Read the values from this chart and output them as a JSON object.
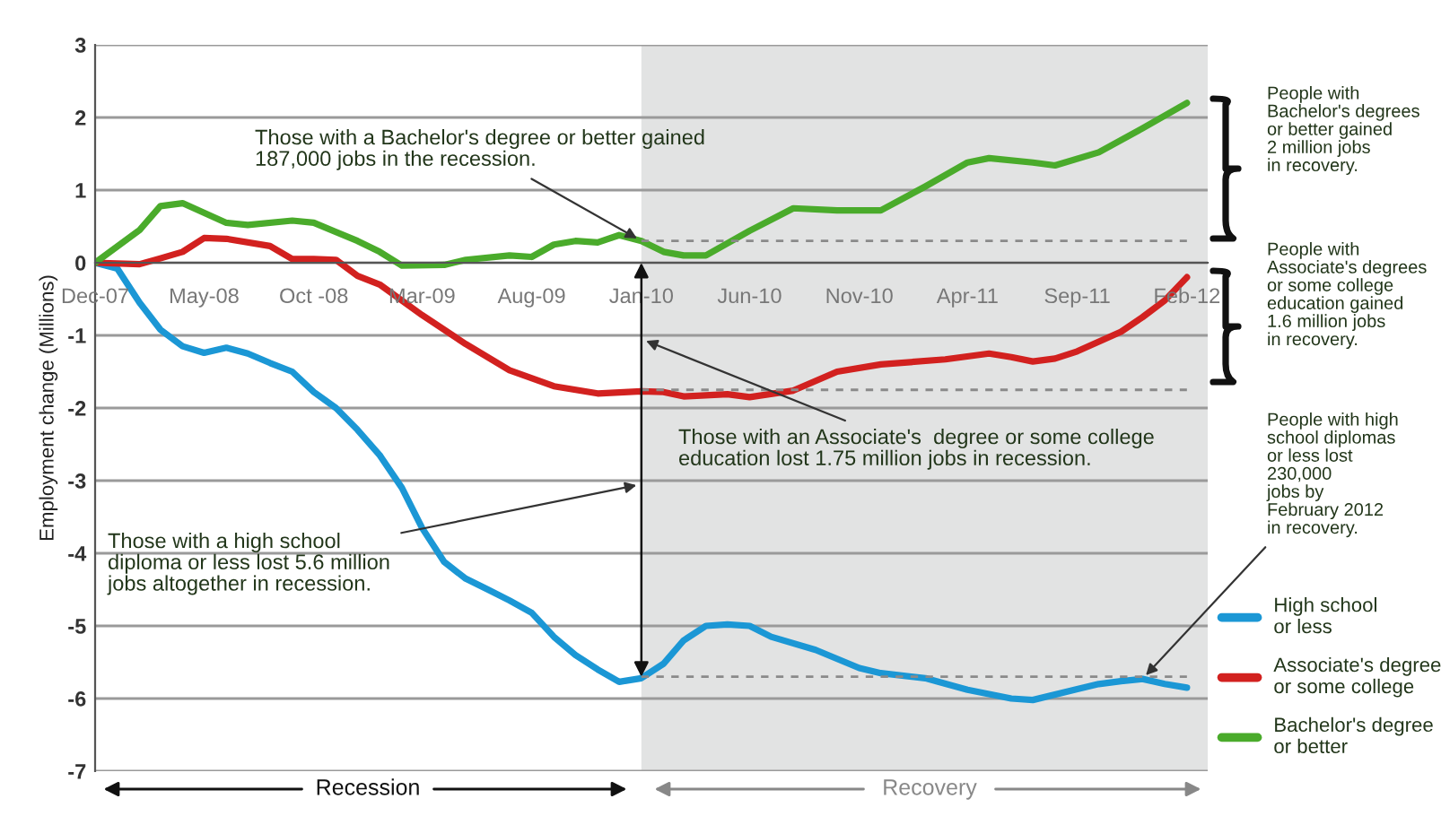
{
  "chart_data": {
    "type": "line",
    "ylabel": "Employment change (Millions)",
    "xlim": [
      "2007-12",
      "2012-03"
    ],
    "ylim": [
      -7,
      3
    ],
    "xticks": [
      {
        "value": "2007-12",
        "label": "Dec-07"
      },
      {
        "value": "2008-05",
        "label": "May-08"
      },
      {
        "value": "2008-10",
        "label": "Oct -08"
      },
      {
        "value": "2009-03",
        "label": "Mar-09"
      },
      {
        "value": "2009-08",
        "label": "Aug-09"
      },
      {
        "value": "2010-01",
        "label": "Jan-10"
      },
      {
        "value": "2010-06",
        "label": "Jun-10"
      },
      {
        "value": "2010-11",
        "label": "Nov-10"
      },
      {
        "value": "2011-04",
        "label": "Apr-11"
      },
      {
        "value": "2011-09",
        "label": "Sep-11"
      },
      {
        "value": "2012-02",
        "label": "Feb-12"
      }
    ],
    "yticks": [
      -7,
      -6,
      -5,
      -4,
      -3,
      -2,
      -1,
      0,
      1,
      2,
      3
    ],
    "grid": "y",
    "legend": "right",
    "bands": [
      {
        "axis": "x",
        "from": "2010-01",
        "to": "2012-03",
        "color": "#e2e3e3"
      }
    ],
    "series": [
      {
        "name": "High school or less",
        "color": "#1b97d5",
        "x": [
          "2007-12",
          "2008-01",
          "2008-02",
          "2008-03",
          "2008-04",
          "2008-05",
          "2008-06",
          "2008-07",
          "2008-08",
          "2008-09",
          "2008-10",
          "2008-11",
          "2008-12",
          "2009-01",
          "2009-02",
          "2009-03",
          "2009-04",
          "2009-05",
          "2009-06",
          "2009-07",
          "2009-08",
          "2009-09",
          "2009-10",
          "2009-11",
          "2009-12",
          "2010-01",
          "2010-02",
          "2010-03",
          "2010-04",
          "2010-05",
          "2010-06",
          "2010-07",
          "2010-09",
          "2010-11",
          "2010-12",
          "2011-02",
          "2011-04",
          "2011-06",
          "2011-07",
          "2011-09",
          "2011-10",
          "2011-11",
          "2011-12",
          "2012-01",
          "2012-02"
        ],
        "values": [
          0,
          -0.08,
          -0.55,
          -0.92,
          -1.15,
          -1.24,
          -1.17,
          -1.25,
          -1.38,
          -1.5,
          -1.78,
          -2.0,
          -2.3,
          -2.65,
          -3.1,
          -3.65,
          -4.12,
          -4.35,
          -4.5,
          -4.65,
          -4.82,
          -5.15,
          -5.4,
          -5.6,
          -5.77,
          -5.72,
          -5.52,
          -5.2,
          -5.0,
          -4.98,
          -5.0,
          -5.15,
          -5.33,
          -5.58,
          -5.65,
          -5.72,
          -5.88,
          -6.0,
          -6.02,
          -5.87,
          -5.8,
          -5.76,
          -5.73,
          -5.8,
          -5.85
        ]
      },
      {
        "name": "Associate's degree or some college",
        "color": "#d2211f",
        "x": [
          "2007-12",
          "2008-02",
          "2008-03",
          "2008-04",
          "2008-05",
          "2008-06",
          "2008-08",
          "2008-09",
          "2008-10",
          "2008-11",
          "2008-12",
          "2009-01",
          "2009-03",
          "2009-05",
          "2009-07",
          "2009-09",
          "2009-11",
          "2010-01",
          "2010-02",
          "2010-03",
          "2010-05",
          "2010-06",
          "2010-08",
          "2010-10",
          "2010-12",
          "2011-03",
          "2011-05",
          "2011-06",
          "2011-07",
          "2011-08",
          "2011-09",
          "2011-11",
          "2011-12",
          "2012-01",
          "2012-02"
        ],
        "values": [
          0,
          -0.02,
          0.06,
          0.15,
          0.34,
          0.33,
          0.23,
          0.05,
          0.05,
          0.04,
          -0.18,
          -0.3,
          -0.72,
          -1.12,
          -1.48,
          -1.7,
          -1.8,
          -1.77,
          -1.78,
          -1.84,
          -1.81,
          -1.85,
          -1.76,
          -1.5,
          -1.4,
          -1.33,
          -1.25,
          -1.3,
          -1.36,
          -1.32,
          -1.22,
          -0.95,
          -0.75,
          -0.52,
          -0.2
        ]
      },
      {
        "name": "Bachelor's degree or better",
        "color": "#4aab2b",
        "x": [
          "2007-12",
          "2008-02",
          "2008-03",
          "2008-04",
          "2008-06",
          "2008-07",
          "2008-09",
          "2008-10",
          "2008-12",
          "2009-01",
          "2009-02",
          "2009-04",
          "2009-05",
          "2009-07",
          "2009-08",
          "2009-09",
          "2009-10",
          "2009-11",
          "2009-12",
          "2010-01",
          "2010-02",
          "2010-03",
          "2010-04",
          "2010-06",
          "2010-08",
          "2010-10",
          "2010-12",
          "2011-02",
          "2011-04",
          "2011-05",
          "2011-07",
          "2011-08",
          "2011-10",
          "2011-12",
          "2012-02"
        ],
        "values": [
          0,
          0.45,
          0.78,
          0.82,
          0.55,
          0.52,
          0.58,
          0.55,
          0.3,
          0.15,
          -0.04,
          -0.03,
          0.04,
          0.1,
          0.08,
          0.25,
          0.3,
          0.28,
          0.38,
          0.3,
          0.15,
          0.1,
          0.1,
          0.44,
          0.75,
          0.72,
          0.72,
          1.05,
          1.38,
          1.44,
          1.38,
          1.34,
          1.52,
          1.85,
          2.2
        ]
      },
      {
        "color": "#8a8a8a",
        "line_style": "dashed",
        "x": [
          "2010-01",
          "2012-02"
        ],
        "values": [
          0.3,
          0.3
        ]
      },
      {
        "color": "#8a8a8a",
        "line_style": "dashed",
        "x": [
          "2010-01",
          "2012-02"
        ],
        "values": [
          -1.75,
          -1.75
        ]
      },
      {
        "color": "#8a8a8a",
        "line_style": "dashed",
        "x": [
          "2010-01",
          "2012-02"
        ],
        "values": [
          -5.7,
          -5.7
        ]
      }
    ],
    "annotations": [
      {
        "text": "Those with a Bachelor's degree or better gained\n187,000 jobs in the recession.",
        "x": "2010-01",
        "y": 0.3
      },
      {
        "text": "Those with an Associate's  degree or some college\neducation lost 1.75 million jobs in recession.",
        "x": "2010-01",
        "y": -1.05
      },
      {
        "text": "Those with a high school\ndiploma or less lost 5.6 million\njobs altogether in recession.",
        "x": "2010-01",
        "y": -3.05
      },
      {
        "text": "People with high\nschool diplomas\nor less lost\n230,000\njobs by\nFebruary 2012\nin recovery.",
        "x": "2011-12",
        "y": -5.73
      },
      "People with\nBachelor's degrees\nor better gained\n2 million jobs\nin recovery.",
      "People with\nAssociate's degrees\nor some college\neducation gained\n1.6 million jobs\nin recovery.",
      "Recession",
      "Recovery"
    ]
  }
}
